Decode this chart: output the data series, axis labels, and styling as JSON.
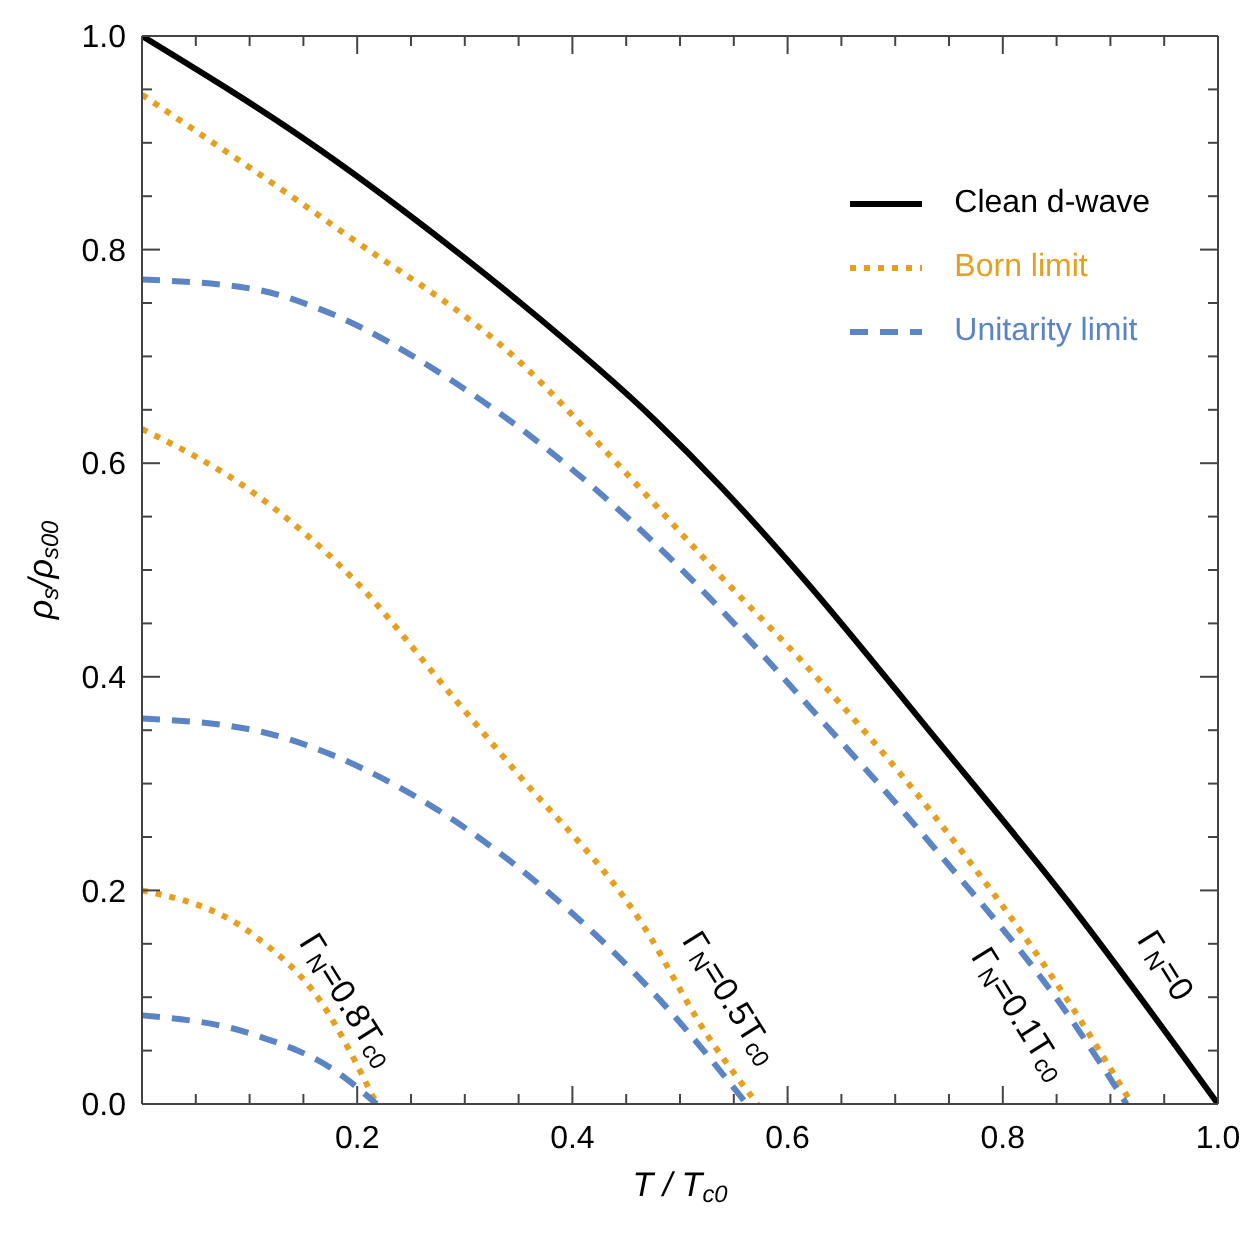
{
  "chart_data": {
    "type": "line",
    "xlabel": "T / T$_{c0}$",
    "ylabel": "ρ$_{s}$/ρ$_{s00}$",
    "xlim": [
      0,
      1
    ],
    "ylim": [
      0,
      1
    ],
    "xticks": [
      {
        "value": 0.05,
        "label": null
      },
      {
        "value": 0.1,
        "label": null
      },
      {
        "value": 0.15,
        "label": null
      },
      {
        "value": 0.2,
        "label": "0.2"
      },
      {
        "value": 0.25,
        "label": null
      },
      {
        "value": 0.3,
        "label": null
      },
      {
        "value": 0.35,
        "label": null
      },
      {
        "value": 0.4,
        "label": "0.4"
      },
      {
        "value": 0.45,
        "label": null
      },
      {
        "value": 0.5,
        "label": null
      },
      {
        "value": 0.55,
        "label": null
      },
      {
        "value": 0.6,
        "label": "0.6"
      },
      {
        "value": 0.65,
        "label": null
      },
      {
        "value": 0.7,
        "label": null
      },
      {
        "value": 0.75,
        "label": null
      },
      {
        "value": 0.8,
        "label": "0.8"
      },
      {
        "value": 0.85,
        "label": null
      },
      {
        "value": 0.9,
        "label": null
      },
      {
        "value": 0.95,
        "label": null
      },
      {
        "value": 1,
        "label": "1.0"
      }
    ],
    "yticks": [
      {
        "value": 0,
        "label": "0.0"
      },
      {
        "value": 0.05,
        "label": null
      },
      {
        "value": 0.1,
        "label": null
      },
      {
        "value": 0.15,
        "label": null
      },
      {
        "value": 0.2,
        "label": "0.2"
      },
      {
        "value": 0.25,
        "label": null
      },
      {
        "value": 0.3,
        "label": null
      },
      {
        "value": 0.35,
        "label": null
      },
      {
        "value": 0.4,
        "label": "0.4"
      },
      {
        "value": 0.45,
        "label": null
      },
      {
        "value": 0.5,
        "label": null
      },
      {
        "value": 0.55,
        "label": null
      },
      {
        "value": 0.6,
        "label": "0.6"
      },
      {
        "value": 0.65,
        "label": null
      },
      {
        "value": 0.7,
        "label": null
      },
      {
        "value": 0.75,
        "label": null
      },
      {
        "value": 0.8,
        "label": "0.8"
      },
      {
        "value": 0.85,
        "label": null
      },
      {
        "value": 0.9,
        "label": null
      },
      {
        "value": 0.95,
        "label": null
      },
      {
        "value": 1,
        "label": "1.0"
      }
    ],
    "legend": "top right",
    "marker": "none",
    "series": [
      {
        "name": "Clean d-wave",
        "color": "#000000",
        "line_style": "solid",
        "x": [
          0,
          0.166,
          0.29,
          0.352,
          0.477,
          0.538,
          0.613,
          0.737,
          0.861,
          1.0
        ],
        "values": [
          1.0,
          0.893,
          0.8,
          0.75,
          0.64,
          0.578,
          0.494,
          0.343,
          0.189,
          0
        ]
      },
      {
        "name": "Born limit",
        "color": "#e69f1e",
        "line_style": "dotted",
        "x": [
          0,
          0.184,
          0.352,
          0.445,
          0.538,
          0.613,
          0.737,
          0.861,
          0.92
        ],
        "values": [
          0.945,
          0.818,
          0.694,
          0.596,
          0.494,
          0.415,
          0.269,
          0.096,
          0
        ]
      },
      {
        "name": "Unitarity limit",
        "color": "#5b84c4",
        "line_style": "dashed",
        "x": [
          0,
          0.104,
          0.166,
          0.29,
          0.413,
          0.538,
          0.613,
          0.737,
          0.861,
          0.915
        ],
        "values": [
          0.772,
          0.763,
          0.744,
          0.676,
          0.583,
          0.463,
          0.38,
          0.239,
          0.083,
          0
        ]
      },
      {
        "color": "#e69f1e",
        "line_style": "dotted",
        "x": [
          0,
          0.104,
          0.197,
          0.29,
          0.346,
          0.464,
          0.525,
          0.572
        ],
        "values": [
          0.632,
          0.572,
          0.491,
          0.38,
          0.313,
          0.17,
          0.065,
          0
        ]
      },
      {
        "color": "#5b84c4",
        "line_style": "dashed",
        "x": [
          0,
          0.104,
          0.24,
          0.395,
          0.488,
          0.562
        ],
        "values": [
          0.361,
          0.35,
          0.296,
          0.183,
          0.09,
          0
        ]
      },
      {
        "color": "#e69f1e",
        "line_style": "dotted",
        "x": [
          0,
          0.104,
          0.166,
          0.218
        ],
        "values": [
          0.2,
          0.158,
          0.096,
          0
        ]
      },
      {
        "color": "#5b84c4",
        "line_style": "dashed",
        "x": [
          0,
          0.104,
          0.184,
          0.218
        ],
        "values": [
          0.083,
          0.065,
          0.028,
          0
        ]
      }
    ],
    "annotations": [
      {
        "text": "Γ$_{N}$=0",
        "x": 0.906,
        "y": 0.128
      },
      {
        "text": "Γ$_{N}$=0.1T$_{c0}$",
        "x": 0.861,
        "y": 0.083
      },
      {
        "text": "Γ$_{N}$=0.5T$_{c0}$",
        "x": 0.507,
        "y": 0.098
      },
      {
        "text": "Γ$_{N}$=0.8T$_{c0}$",
        "x": 0.166,
        "y": 0.096
      }
    ]
  }
}
